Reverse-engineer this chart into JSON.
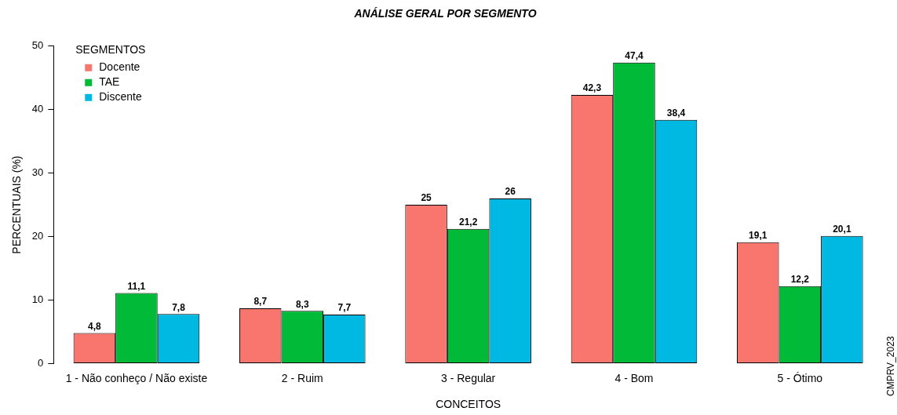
{
  "chart_data": {
    "type": "bar",
    "title": "ANÁLISE GERAL POR SEGMENTO",
    "xlabel": "CONCEITOS",
    "ylabel": "PERCENTUAIS (%)",
    "legend_title": "SEGMENTOS",
    "categories": [
      "1 - Não conheço / Não existe",
      "2 - Ruim",
      "3 - Regular",
      "4 - Bom",
      "5 - Ótimo"
    ],
    "series": [
      {
        "name": "Docente",
        "color": "#f8766d",
        "values": [
          4.8,
          8.7,
          25,
          42.3,
          19.1
        ],
        "value_labels": [
          "4,8",
          "8,7",
          "25",
          "42,3",
          "19,1"
        ]
      },
      {
        "name": "TAE",
        "color": "#00ba38",
        "values": [
          11.1,
          8.3,
          21.2,
          47.4,
          12.2
        ],
        "value_labels": [
          "11,1",
          "8,3",
          "21,2",
          "47,4",
          "12,2"
        ]
      },
      {
        "name": "Discente",
        "color": "#00b9e3",
        "values": [
          7.8,
          7.7,
          26,
          38.4,
          20.1
        ],
        "value_labels": [
          "7,8",
          "7,7",
          "26",
          "38,4",
          "20,1"
        ]
      }
    ],
    "ylim": [
      0,
      50
    ],
    "yticks": [
      0,
      10,
      20,
      30,
      40,
      50
    ],
    "grid": false,
    "legend": "top left",
    "annotations": [
      "CMPRV_2023"
    ]
  }
}
